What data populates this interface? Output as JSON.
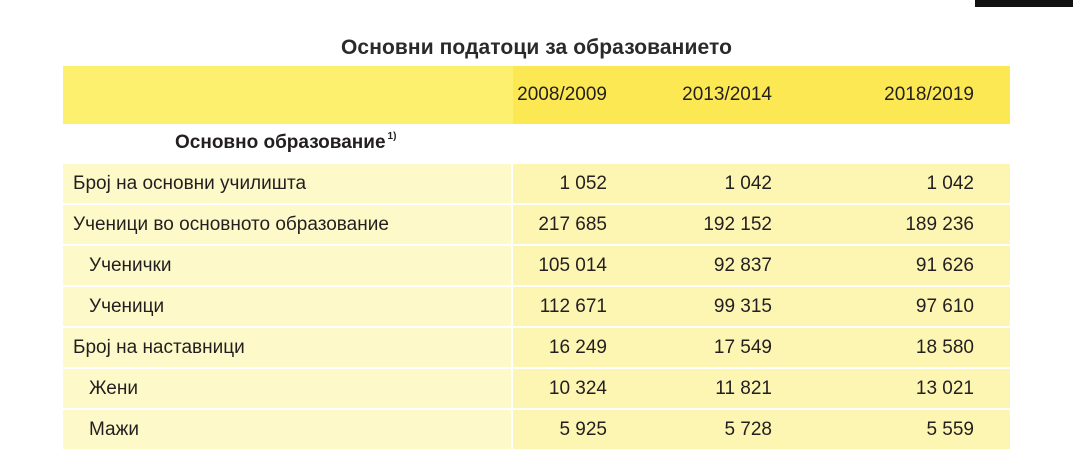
{
  "title": "Основни податоци за образованието",
  "columns": [
    "2008/2009",
    "2013/2014",
    "2018/2019"
  ],
  "section": {
    "label": "Основно образование",
    "footnote": "1)"
  },
  "rows": [
    {
      "label": "Број на основни училишта",
      "values": [
        "1 052",
        "1 042",
        "1 042"
      ]
    },
    {
      "label": "Ученици во основното образование",
      "values": [
        "217 685",
        "192 152",
        "189 236"
      ]
    },
    {
      "label": "Ученички",
      "values": [
        "105 014",
        "92 837",
        "91 626"
      ]
    },
    {
      "label": "Ученици",
      "values": [
        "112 671",
        "99 315",
        "97 610"
      ]
    },
    {
      "label": "Број на наставници",
      "values": [
        "16 249",
        "17 549",
        "18 580"
      ]
    },
    {
      "label": "Жени",
      "values": [
        "10 324",
        "11 821",
        "13 021"
      ]
    },
    {
      "label": "Мажи",
      "values": [
        "5 925",
        "5 728",
        "5 559"
      ]
    }
  ],
  "colors": {
    "header_yellow": "#fdf06e",
    "row_label_bg": "#fef9c8",
    "row_value_bg": "#fdf5b2"
  }
}
